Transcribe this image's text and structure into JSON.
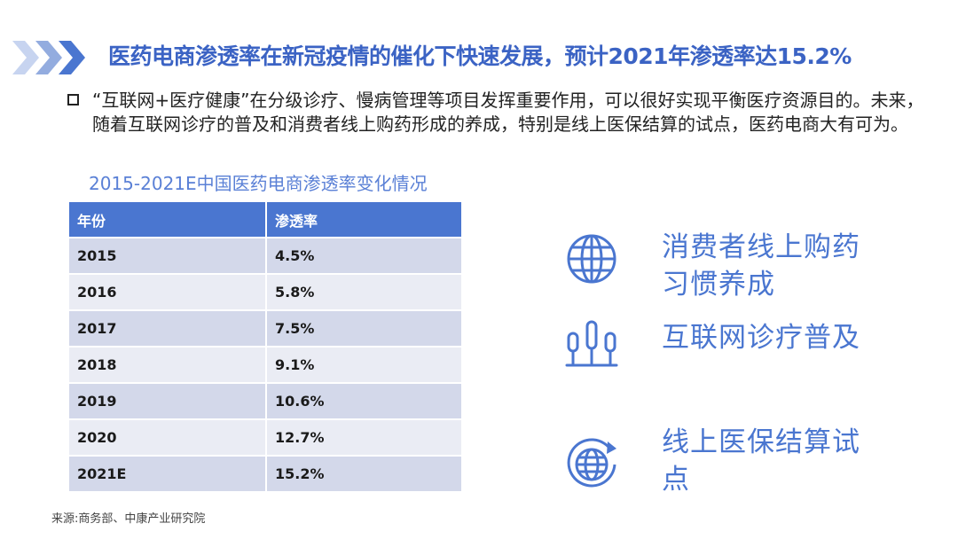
{
  "title": "医药电商渗透率在新冠疫情的催化下快速发展，预计2021年渗透率达15.2%",
  "intro": "“互联网+医疗健康”在分级诊疗、慢病管理等项目发挥重要作用，可以很好实现平衡医疗资源目的。未来，随着互联网诊疗的普及和消费者线上购药形成的养成，特别是线上医保结算的试点，医药电商大有可为。",
  "table": {
    "caption": "2015-2021E中国医药电商渗透率变化情况",
    "headers": [
      "年份",
      "渗透率"
    ],
    "rows": [
      {
        "year": "2015",
        "rate": "4.5%"
      },
      {
        "year": "2016",
        "rate": "5.8%"
      },
      {
        "year": "2017",
        "rate": "7.5%"
      },
      {
        "year": "2018",
        "rate": "9.1%"
      },
      {
        "year": "2019",
        "rate": "10.6%"
      },
      {
        "year": "2020",
        "rate": "12.7%"
      },
      {
        "year": "2021E",
        "rate": "15.2%"
      }
    ]
  },
  "features": [
    {
      "icon": "globe-icon",
      "label": "消费者线上购药习惯养成"
    },
    {
      "icon": "people-icon",
      "label": "互联网诊疗普及"
    },
    {
      "icon": "globe-refresh-icon",
      "label": "线上医保结算试点"
    }
  ],
  "source": "来源:商务部、中康产业研究院",
  "colors": {
    "accent": "#4a76d0",
    "title": "#3b63c4",
    "row_odd": "#d3d8ea",
    "row_even": "#eaecf4"
  }
}
